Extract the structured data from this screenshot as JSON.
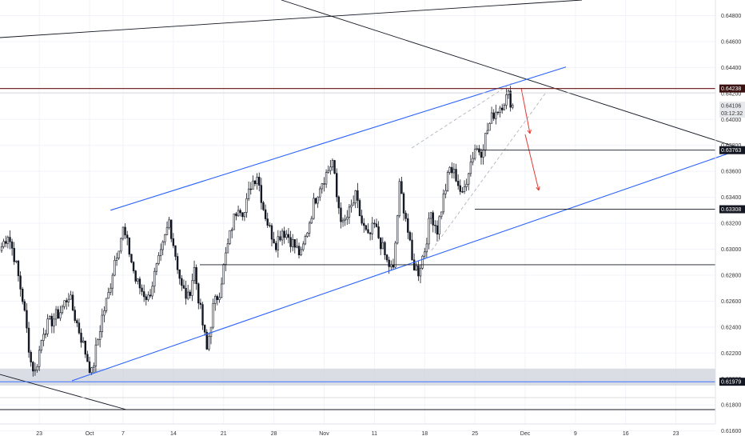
{
  "chart_data": {
    "type": "candlestick",
    "y_axis": {
      "position": "right",
      "ylim": [
        0.6153,
        0.6492
      ],
      "ticks": [
        0.648,
        0.646,
        0.644,
        0.642,
        0.64,
        0.638,
        0.636,
        0.634,
        0.632,
        0.63,
        0.628,
        0.626,
        0.624,
        0.622,
        0.62,
        0.618,
        0.616
      ],
      "tick_labels": [
        "0.64800",
        "0.64600",
        "0.64400",
        "0.64200",
        "0.64000",
        "0.63800",
        "0.63600",
        "0.63400",
        "0.63200",
        "0.63000",
        "0.62800",
        "0.62600",
        "0.62400",
        "0.62200",
        "0.62000",
        "0.61800",
        "0.61600"
      ]
    },
    "x_axis": {
      "unit": "4-hour bars",
      "date_ticks": [
        {
          "label": "23",
          "bar": 18
        },
        {
          "label": "Oct",
          "bar": 42
        },
        {
          "label": "7",
          "bar": 58
        },
        {
          "label": "14",
          "bar": 82
        },
        {
          "label": "21",
          "bar": 106
        },
        {
          "label": "28",
          "bar": 130
        },
        {
          "label": "Nov",
          "bar": 154
        },
        {
          "label": "11",
          "bar": 178
        },
        {
          "label": "18",
          "bar": 202
        },
        {
          "label": "25",
          "bar": 226
        },
        {
          "label": "Dec",
          "bar": 250
        },
        {
          "label": "9",
          "bar": 274
        },
        {
          "label": "16",
          "bar": 298
        },
        {
          "label": "23",
          "bar": 322
        }
      ]
    },
    "price_anchors": [
      [
        0,
        0.6302
      ],
      [
        3,
        0.6312
      ],
      [
        6,
        0.6295
      ],
      [
        10,
        0.6262
      ],
      [
        14,
        0.6213
      ],
      [
        16,
        0.6205
      ],
      [
        20,
        0.6238
      ],
      [
        24,
        0.6245
      ],
      [
        28,
        0.6252
      ],
      [
        32,
        0.6265
      ],
      [
        35,
        0.6248
      ],
      [
        38,
        0.6232
      ],
      [
        41,
        0.6215
      ],
      [
        43,
        0.6204
      ],
      [
        45,
        0.6222
      ],
      [
        48,
        0.6248
      ],
      [
        51,
        0.6265
      ],
      [
        54,
        0.6292
      ],
      [
        58,
        0.6315
      ],
      [
        61,
        0.6298
      ],
      [
        64,
        0.6276
      ],
      [
        67,
        0.6268
      ],
      [
        70,
        0.6262
      ],
      [
        73,
        0.628
      ],
      [
        76,
        0.6295
      ],
      [
        80,
        0.6322
      ],
      [
        83,
        0.6296
      ],
      [
        86,
        0.627
      ],
      [
        89,
        0.6262
      ],
      [
        92,
        0.6285
      ],
      [
        95,
        0.6252
      ],
      [
        98,
        0.6222
      ],
      [
        101,
        0.6255
      ],
      [
        104,
        0.6268
      ],
      [
        107,
        0.6295
      ],
      [
        110,
        0.6318
      ],
      [
        113,
        0.6335
      ],
      [
        116,
        0.6328
      ],
      [
        119,
        0.635
      ],
      [
        122,
        0.6358
      ],
      [
        125,
        0.6332
      ],
      [
        128,
        0.6315
      ],
      [
        131,
        0.6305
      ],
      [
        134,
        0.6315
      ],
      [
        137,
        0.631
      ],
      [
        140,
        0.6302
      ],
      [
        143,
        0.6295
      ],
      [
        146,
        0.6315
      ],
      [
        149,
        0.6335
      ],
      [
        152,
        0.635
      ],
      [
        155,
        0.6358
      ],
      [
        158,
        0.6368
      ],
      [
        160,
        0.634
      ],
      [
        163,
        0.6318
      ],
      [
        166,
        0.6328
      ],
      [
        169,
        0.634
      ],
      [
        172,
        0.632
      ],
      [
        175,
        0.6308
      ],
      [
        178,
        0.6318
      ],
      [
        181,
        0.6305
      ],
      [
        184,
        0.629
      ],
      [
        187,
        0.6283
      ],
      [
        190,
        0.6348
      ],
      [
        193,
        0.6325
      ],
      [
        196,
        0.629
      ],
      [
        199,
        0.6283
      ],
      [
        202,
        0.63
      ],
      [
        205,
        0.6328
      ],
      [
        208,
        0.6315
      ],
      [
        211,
        0.634
      ],
      [
        214,
        0.6362
      ],
      [
        217,
        0.6356
      ],
      [
        220,
        0.634
      ],
      [
        223,
        0.6362
      ],
      [
        226,
        0.6378
      ],
      [
        229,
        0.6376
      ],
      [
        232,
        0.6392
      ],
      [
        235,
        0.6405
      ],
      [
        238,
        0.641
      ],
      [
        240,
        0.6415
      ],
      [
        242,
        0.6418
      ],
      [
        244,
        0.6411
      ]
    ],
    "current_price": 0.64106,
    "countdown": "03:12:32",
    "levels": [
      {
        "name": "resistance",
        "price": 0.64238,
        "label": "0.64238",
        "color": "#7b2a2a"
      },
      {
        "name": "level-1",
        "price": 0.63763,
        "label": "0.63763",
        "color": "#131722"
      },
      {
        "name": "level-2",
        "price": 0.63308,
        "label": "0.63308",
        "color": "#131722"
      },
      {
        "name": "support",
        "price": 0.61979,
        "label": "0.61979",
        "color": "#2962ff"
      },
      {
        "name": "mid-support",
        "price": 0.6288,
        "label": "",
        "color": "#131722"
      }
    ],
    "demand_zone": {
      "from": 0.6195,
      "to": 0.6208
    },
    "channel": {
      "upper": [
        [
          52,
          0.633
        ],
        [
          258,
          0.6433
        ]
      ],
      "lower": [
        [
          28,
          0.618
        ],
        [
          353,
          0.6367
        ]
      ],
      "color": "#2962ff"
    },
    "colors": {
      "candle": "#131722",
      "trendline": "#131722",
      "projection_arrow": "#e53935",
      "dashed_guides": "#b2b5be",
      "grid": "#f0f3fa",
      "axis_text": "#333333",
      "zone_fill": "#d1d4dc"
    }
  },
  "price_labels": {
    "current": "0.64106",
    "countdown": "03:12:32"
  }
}
